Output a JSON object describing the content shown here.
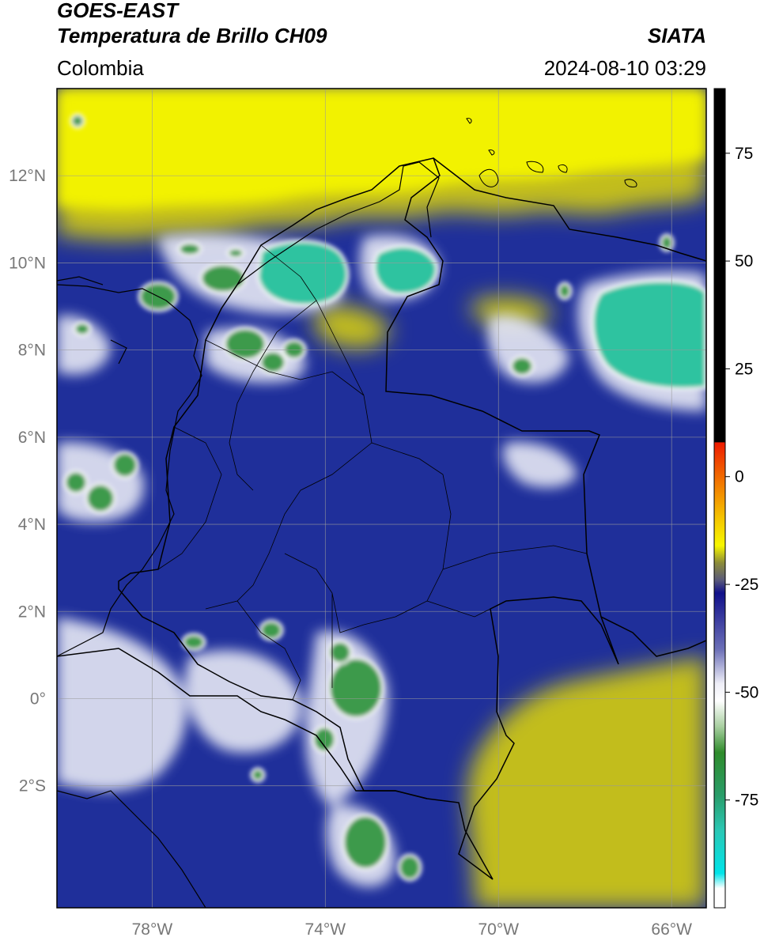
{
  "header": {
    "satellite": "GOES-EAST",
    "product": "Temperatura de Brillo CH09",
    "organization": "SIATA",
    "region": "Colombia",
    "timestamp": "2024-08-10 03:29"
  },
  "map": {
    "projection": "plate carree",
    "lon_range": [
      -80.2,
      -65.2
    ],
    "lat_range": [
      -4.8,
      14.0
    ],
    "gridlines": true,
    "lat_ticks": [
      {
        "value": 12,
        "label": "12°N"
      },
      {
        "value": 10,
        "label": "10°N"
      },
      {
        "value": 8,
        "label": "8°N"
      },
      {
        "value": 6,
        "label": "6°N"
      },
      {
        "value": 4,
        "label": "4°N"
      },
      {
        "value": 2,
        "label": "2°N"
      },
      {
        "value": 0,
        "label": "0°"
      },
      {
        "value": -2,
        "label": "2°S"
      }
    ],
    "lon_ticks": [
      {
        "value": -78,
        "label": "78°W"
      },
      {
        "value": -74,
        "label": "74°W"
      },
      {
        "value": -70,
        "label": "70°W"
      },
      {
        "value": -66,
        "label": "66°W"
      }
    ],
    "fields": {
      "background_color": "#1f2f9a",
      "clear_north_color": "#f2f200",
      "clear_southeast_color": "#c2bd1f",
      "cloud_color": "#e6e8f4",
      "cold_top_color": "#3c9a4c",
      "coldest_top_color": "#2ec3a0"
    },
    "boundaries": "Colombia departments and neighboring country borders, coastlines"
  },
  "colorbar": {
    "range": [
      -100,
      90
    ],
    "ticks": [
      75,
      50,
      25,
      0,
      -25,
      -50,
      -75
    ],
    "tick_labels": [
      "75",
      "50",
      "25",
      "0",
      "-25",
      "-50",
      "-75"
    ],
    "stops": [
      {
        "value": 90,
        "color": "#000000"
      },
      {
        "value": 8,
        "color": "#000000"
      },
      {
        "value": 7.9,
        "color": "#ee1b00"
      },
      {
        "value": -2,
        "color": "#f27d00"
      },
      {
        "value": -10,
        "color": "#f5c800"
      },
      {
        "value": -16,
        "color": "#f7f700"
      },
      {
        "value": -20,
        "color": "#8c8c3a"
      },
      {
        "value": -24,
        "color": "#5a5a7a"
      },
      {
        "value": -27,
        "color": "#10108a"
      },
      {
        "value": -40,
        "color": "#6b6fb7"
      },
      {
        "value": -48,
        "color": "#eeeef7"
      },
      {
        "value": -52,
        "color": "#ffffff"
      },
      {
        "value": -58,
        "color": "#a8cfa0"
      },
      {
        "value": -64,
        "color": "#2f8c2b"
      },
      {
        "value": -74,
        "color": "#2a9d6a"
      },
      {
        "value": -82,
        "color": "#2bc7b4"
      },
      {
        "value": -92,
        "color": "#00e4e9"
      },
      {
        "value": -95.5,
        "color": "#ffffff"
      },
      {
        "value": -100,
        "color": "#ffffff"
      }
    ]
  }
}
